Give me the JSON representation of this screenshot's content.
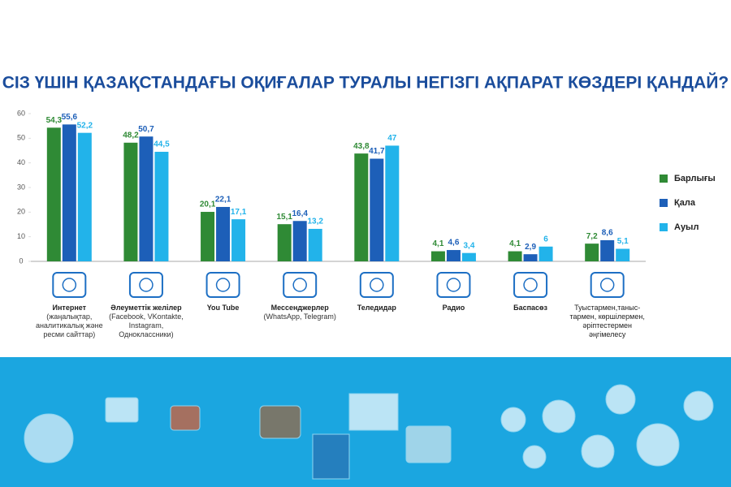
{
  "chart_data": {
    "type": "bar",
    "title": "СІЗ ҮШІН ҚАЗАҚСТАНДАҒЫ ОҚИҒАЛАР ТУРАЛЫ НЕГІЗГІ АҚПАРАТ КӨЗДЕРІ ҚАНДАЙ?",
    "categories": [
      "Интернет",
      "Әлеуметтік желілер",
      "You Tube",
      "Мессенджерлер",
      "Теледидар",
      "Радио",
      "Баспасөз",
      "Туыстармен,таныс-тармен, көршілермен, әріптестермен әңгімелесу"
    ],
    "category_notes": [
      "(жаңалықтар, аналитикалық және ресми сайттар)",
      "(Facebook, VKontakte, Instagram, Одноклассники)",
      null,
      "(WhatsApp, Telegram)",
      null,
      null,
      null,
      null
    ],
    "series": [
      {
        "name": "Барлығы",
        "color": "#2f8a35",
        "values": [
          54.3,
          48.2,
          20.1,
          15.1,
          43.8,
          4.1,
          4.1,
          7.2
        ],
        "value_labels": [
          "54,3",
          "48,2",
          "20,1",
          "15,1",
          "43,8",
          "4,1",
          "4,1",
          "7,2"
        ]
      },
      {
        "name": "Қала",
        "color": "#1d5fb8",
        "values": [
          55.6,
          50.7,
          22.1,
          16.4,
          41.7,
          4.6,
          2.9,
          8.6
        ],
        "value_labels": [
          "55,6",
          "50,7",
          "22,1",
          "16,4",
          "41,7",
          "4,6",
          "2,9",
          "8,6"
        ]
      },
      {
        "name": "Ауыл",
        "color": "#22b3ea",
        "values": [
          52.2,
          44.5,
          17.1,
          13.2,
          47,
          3.4,
          6,
          5.1
        ],
        "value_labels": [
          "52,2",
          "44,5",
          "17,1",
          "13,2",
          "47",
          "3,4",
          "6",
          "5,1"
        ]
      }
    ],
    "ylim": [
      0,
      60
    ],
    "yticks": [
      0,
      10,
      20,
      30,
      40,
      50,
      60
    ],
    "grid": false,
    "legend": "right"
  }
}
